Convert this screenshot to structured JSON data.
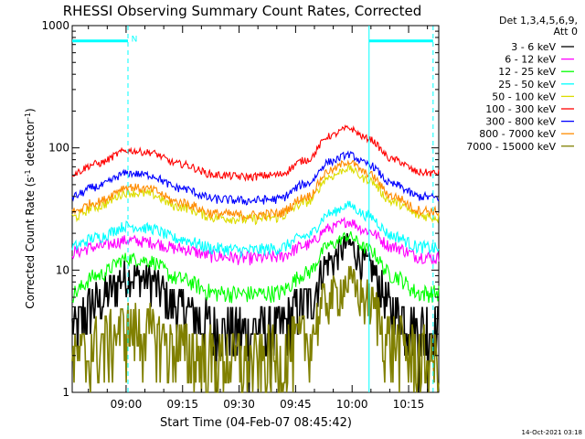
{
  "chart_data": {
    "type": "line",
    "title": "RHESSI Observing Summary Count Rates, Corrected",
    "xlabel": "Start Time (04-Feb-07 08:45:42)",
    "ylabel_pre": "Corrected Count Rate (s",
    "ylabel_sup1": "-1",
    "ylabel_mid": " detector",
    "ylabel_sup2": "-1",
    "ylabel_post": ")",
    "y_scale": "log",
    "ylim": [
      1,
      1000
    ],
    "xlim": [
      "08:45:42",
      "10:23:00"
    ],
    "y_ticks": [
      {
        "value": 1,
        "label": "1"
      },
      {
        "value": 10,
        "label": "10"
      },
      {
        "value": 100,
        "label": "100"
      },
      {
        "value": 1000,
        "label": "1000"
      }
    ],
    "x_ticks": [
      {
        "time": "09:00",
        "label": "09:00"
      },
      {
        "time": "09:15",
        "label": "09:15"
      },
      {
        "time": "09:30",
        "label": "09:30"
      },
      {
        "time": "09:45",
        "label": "09:45"
      },
      {
        "time": "10:00",
        "label": "10:00"
      },
      {
        "time": "10:15",
        "label": "10:15"
      }
    ],
    "legend_placement": "right",
    "legend_header": [
      "Det 1,3,4,5,6,9,",
      "Att 0"
    ],
    "series": [
      {
        "name": "3 - 6 keV",
        "color": "#000000",
        "values": [
          3.4,
          5.5,
          9.0,
          8.5,
          5.0,
          3.4,
          3.3,
          3.4,
          5.5,
          12.0,
          16.0,
          11.0,
          4.8,
          3.4,
          3.4
        ]
      },
      {
        "name": "6 - 12 keV",
        "color": "#ff00ff",
        "values": [
          14.0,
          15.5,
          17.5,
          17.0,
          15.0,
          13.0,
          12.5,
          12.8,
          16.0,
          22.0,
          25.0,
          21.0,
          15.5,
          13.0,
          12.5
        ]
      },
      {
        "name": "12 - 25 keV",
        "color": "#00ff00",
        "values": [
          6.5,
          9.0,
          12.5,
          12.0,
          8.5,
          6.5,
          6.4,
          6.5,
          9.5,
          16.0,
          19.0,
          15.0,
          9.0,
          6.5,
          6.5
        ]
      },
      {
        "name": "25 - 50 keV",
        "color": "#00ffff",
        "values": [
          15.5,
          18.5,
          23.0,
          22.0,
          18.0,
          15.0,
          14.5,
          15.0,
          19.0,
          29.0,
          34.0,
          28.0,
          19.0,
          15.5,
          15.0
        ]
      },
      {
        "name": "50 - 100 keV",
        "color": "#dddd00",
        "values": [
          27.0,
          33.0,
          43.0,
          42.0,
          33.0,
          27.0,
          26.0,
          27.0,
          36.0,
          58.0,
          68.0,
          55.0,
          36.0,
          28.0,
          27.0
        ]
      },
      {
        "name": "100 - 300 keV",
        "color": "#ff0000",
        "values": [
          62.0,
          74.0,
          95.0,
          92.0,
          74.0,
          60.0,
          58.0,
          60.0,
          80.0,
          125.0,
          145.0,
          120.0,
          80.0,
          63.0,
          62.0
        ]
      },
      {
        "name": "300 - 800 keV",
        "color": "#0000ff",
        "values": [
          40.0,
          48.0,
          62.0,
          60.0,
          47.0,
          38.0,
          37.0,
          38.0,
          51.0,
          77.0,
          88.0,
          74.0,
          50.0,
          40.0,
          39.0
        ]
      },
      {
        "name": "800 - 7000 keV",
        "color": "#ff8c00",
        "values": [
          30.0,
          36.0,
          48.0,
          46.0,
          36.0,
          29.0,
          28.0,
          29.0,
          40.0,
          65.0,
          77.0,
          62.0,
          40.0,
          31.0,
          30.0
        ]
      },
      {
        "name": "7000 - 15000 keV",
        "color": "#808000",
        "values": [
          1.8,
          2.4,
          3.4,
          3.2,
          2.3,
          1.9,
          1.8,
          1.9,
          2.8,
          6.0,
          8.0,
          5.8,
          2.6,
          1.9,
          1.8
        ]
      }
    ],
    "series_times": [
      "08:45:42",
      "08:52:00",
      "09:00:30",
      "09:06:00",
      "09:14:00",
      "09:24:00",
      "09:32:00",
      "09:40:00",
      "09:48:00",
      "09:54:00",
      "09:59:00",
      "10:04:00",
      "10:11:00",
      "10:18:00",
      "10:23:00"
    ],
    "annotations": {
      "marker_color": "#00ffff",
      "marker_lines": [
        "09:00:30",
        "10:04:30",
        "10:21:30"
      ],
      "night_bars": [
        {
          "start": "08:45:42",
          "end": "09:00:30",
          "level": 750,
          "label": "N"
        },
        {
          "start": "10:04:30",
          "end": "10:21:30",
          "level": 750,
          "label": ""
        }
      ]
    }
  },
  "footer": {
    "timestamp": "14-Oct-2021 03:18"
  }
}
